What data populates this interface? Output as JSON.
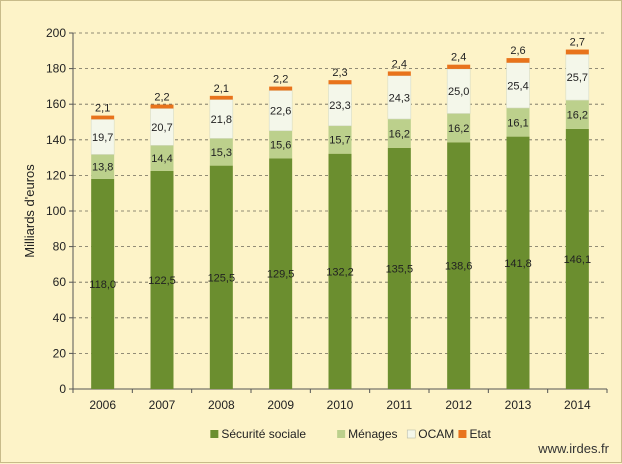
{
  "chart_data": {
    "type": "bar",
    "stacked": true,
    "categories": [
      "2006",
      "2007",
      "2008",
      "2009",
      "2010",
      "2011",
      "2012",
      "2013",
      "2014"
    ],
    "ylabel": "Milliards d'euros",
    "ylim": [
      0,
      200
    ],
    "yticks": [
      0,
      20,
      40,
      60,
      80,
      100,
      120,
      140,
      160,
      180,
      200
    ],
    "grid": true,
    "legend_position": "bottom",
    "series": [
      {
        "name": "Sécurité sociale",
        "color": "#6b8e2f",
        "values": [
          118.0,
          122.5,
          125.5,
          129.5,
          132.2,
          135.5,
          138.6,
          141.8,
          146.1
        ],
        "labels": [
          "118,0",
          "122,5",
          "125,5",
          "129,5",
          "132,2",
          "135,5",
          "138,6",
          "141,8",
          "146,1"
        ]
      },
      {
        "name": "Ménages",
        "color": "#bcd08c",
        "values": [
          13.8,
          14.4,
          15.3,
          15.6,
          15.7,
          16.2,
          16.2,
          16.1,
          16.2
        ],
        "labels": [
          "13,8",
          "14,4",
          "15,3",
          "15,6",
          "15,7",
          "16,2",
          "16,2",
          "16,1",
          "16,2"
        ]
      },
      {
        "name": "OCAM",
        "color": "#f4f7ea",
        "values": [
          19.7,
          20.7,
          21.8,
          22.6,
          23.3,
          24.3,
          25.0,
          25.4,
          25.7
        ],
        "labels": [
          "19,7",
          "20,7",
          "21,8",
          "22,6",
          "23,3",
          "24,3",
          "25,0",
          "25,4",
          "25,7"
        ]
      },
      {
        "name": "Etat",
        "color": "#e8731c",
        "values": [
          2.1,
          2.2,
          2.1,
          2.2,
          2.3,
          2.4,
          2.4,
          2.6,
          2.7
        ],
        "labels": [
          "2,1",
          "2,2",
          "2,1",
          "2,2",
          "2,3",
          "2,4",
          "2,4",
          "2,6",
          "2,7"
        ]
      }
    ]
  },
  "footer": {
    "website": "www.irdes.fr"
  }
}
